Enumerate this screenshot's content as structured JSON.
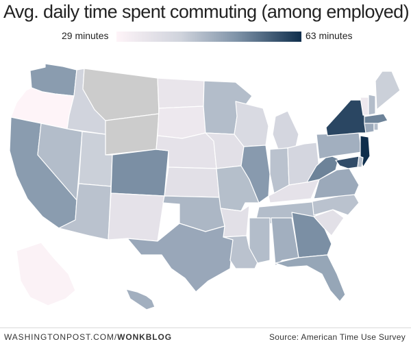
{
  "title": "Avg. daily time spent commuting (among employed)",
  "legend": {
    "min_label": "29 minutes",
    "max_label": "63 minutes",
    "color_low": "#fef4f8",
    "color_mid_low": "#cfd3dc",
    "color_mid_high": "#7f93a8",
    "color_high": "#0f2e4c"
  },
  "no_data_color": "#cccccc",
  "regions": [
    {
      "id": "WA",
      "level": 0.62
    },
    {
      "id": "OR",
      "level": 0.0
    },
    {
      "id": "CA",
      "level": 0.62
    },
    {
      "id": "ID",
      "level": 0.32
    },
    {
      "id": "NV",
      "level": 0.45
    },
    {
      "id": "MT",
      "level": null
    },
    {
      "id": "WY",
      "level": null
    },
    {
      "id": "UT",
      "level": 0.35
    },
    {
      "id": "AZ",
      "level": 0.42
    },
    {
      "id": "CO",
      "level": 0.68
    },
    {
      "id": "NM",
      "level": 0.18
    },
    {
      "id": "ND",
      "level": 0.15
    },
    {
      "id": "SD",
      "level": 0.12
    },
    {
      "id": "NE",
      "level": 0.18
    },
    {
      "id": "KS",
      "level": 0.2
    },
    {
      "id": "OK",
      "level": 0.48
    },
    {
      "id": "TX",
      "level": 0.56
    },
    {
      "id": "MN",
      "level": 0.45
    },
    {
      "id": "IA",
      "level": 0.2
    },
    {
      "id": "MO",
      "level": 0.44
    },
    {
      "id": "AR",
      "level": 0.2
    },
    {
      "id": "LA",
      "level": 0.42
    },
    {
      "id": "WI",
      "level": 0.26
    },
    {
      "id": "IL",
      "level": 0.63
    },
    {
      "id": "MI",
      "level": 0.3
    },
    {
      "id": "IN",
      "level": 0.42
    },
    {
      "id": "OH",
      "level": 0.3
    },
    {
      "id": "KY",
      "level": 0.18
    },
    {
      "id": "TN",
      "level": 0.45
    },
    {
      "id": "MS",
      "level": 0.45
    },
    {
      "id": "AL",
      "level": 0.52
    },
    {
      "id": "GA",
      "level": 0.68
    },
    {
      "id": "FL",
      "level": 0.57
    },
    {
      "id": "SC",
      "level": 0.2
    },
    {
      "id": "NC",
      "level": 0.42
    },
    {
      "id": "VA",
      "level": 0.55
    },
    {
      "id": "WV",
      "level": 0.72
    },
    {
      "id": "PA",
      "level": 0.52
    },
    {
      "id": "NY",
      "level": 0.92
    },
    {
      "id": "NJ",
      "level": 1.0
    },
    {
      "id": "MD",
      "level": 0.9
    },
    {
      "id": "DE",
      "level": 0.45
    },
    {
      "id": "CT",
      "level": 0.55
    },
    {
      "id": "RI",
      "level": 0.45
    },
    {
      "id": "MA",
      "level": 0.72
    },
    {
      "id": "VT",
      "level": 0.12
    },
    {
      "id": "NH",
      "level": 0.45
    },
    {
      "id": "ME",
      "level": 0.35
    },
    {
      "id": "AK",
      "level": 0.02
    },
    {
      "id": "HI",
      "level": 0.52
    }
  ],
  "footer": {
    "site": "WASHINGTONPOST.COM/",
    "blog": "WONKBLOG",
    "source": "Source: American Time Use Survey"
  }
}
